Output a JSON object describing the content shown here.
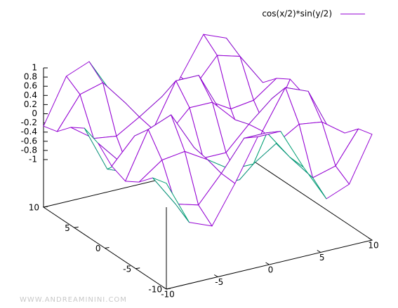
{
  "chart_data": {
    "type": "surface",
    "legend": "cos(x/2)*sin(y/2)",
    "color": "#9400d3",
    "back_color": "#009e73",
    "x": [
      -10,
      -7.78,
      -5.56,
      -3.33,
      -1.11,
      1.11,
      3.33,
      5.56,
      7.78,
      10
    ],
    "y": [
      -10,
      -7.78,
      -5.56,
      -3.33,
      -1.11,
      1.11,
      3.33,
      5.56,
      7.78,
      10
    ],
    "z": [
      [
        0.27,
        0.19,
        -0.1,
        -0.28,
        -0.15,
        0.15,
        0.28,
        0.1,
        -0.19,
        -0.27
      ],
      [
        -0.7,
        -0.5,
        0.26,
        0.73,
        0.39,
        -0.39,
        -0.73,
        -0.26,
        0.5,
        0.7
      ],
      [
        -0.9,
        -0.64,
        0.33,
        0.93,
        0.49,
        -0.49,
        -0.93,
        -0.33,
        0.64,
        0.9
      ],
      [
        -0.09,
        -0.07,
        0.03,
        0.1,
        0.05,
        -0.05,
        -0.1,
        -0.03,
        0.07,
        0.09
      ],
      [
        0.81,
        0.58,
        -0.3,
        -0.84,
        -0.45,
        0.45,
        0.84,
        0.3,
        -0.58,
        -0.81
      ],
      [
        0.81,
        0.58,
        -0.3,
        -0.84,
        -0.45,
        0.45,
        0.84,
        0.3,
        -0.58,
        -0.81
      ],
      [
        -0.09,
        -0.07,
        0.03,
        0.1,
        0.05,
        -0.05,
        -0.1,
        -0.03,
        0.07,
        0.09
      ],
      [
        -0.9,
        -0.64,
        0.33,
        0.93,
        0.49,
        -0.49,
        -0.93,
        -0.33,
        0.64,
        0.9
      ],
      [
        -0.7,
        -0.5,
        0.26,
        0.73,
        0.39,
        -0.39,
        -0.73,
        -0.26,
        0.5,
        0.7
      ],
      [
        0.27,
        0.19,
        -0.1,
        -0.28,
        -0.15,
        0.15,
        0.28,
        0.1,
        -0.19,
        -0.27
      ]
    ],
    "xlim": [
      -10,
      10
    ],
    "ylim": [
      -10,
      10
    ],
    "zlim": [
      -1,
      1
    ],
    "xticks": [
      -10,
      -5,
      0,
      5,
      10
    ],
    "yticks": [
      -10,
      -5,
      0,
      5,
      10
    ],
    "zticks": [
      1,
      0.8,
      0.6,
      0.4,
      0.2,
      0,
      -0.2,
      -0.4,
      -0.6,
      -0.8,
      -1
    ]
  },
  "watermark": "WWW.ANDREAMININI.COM"
}
